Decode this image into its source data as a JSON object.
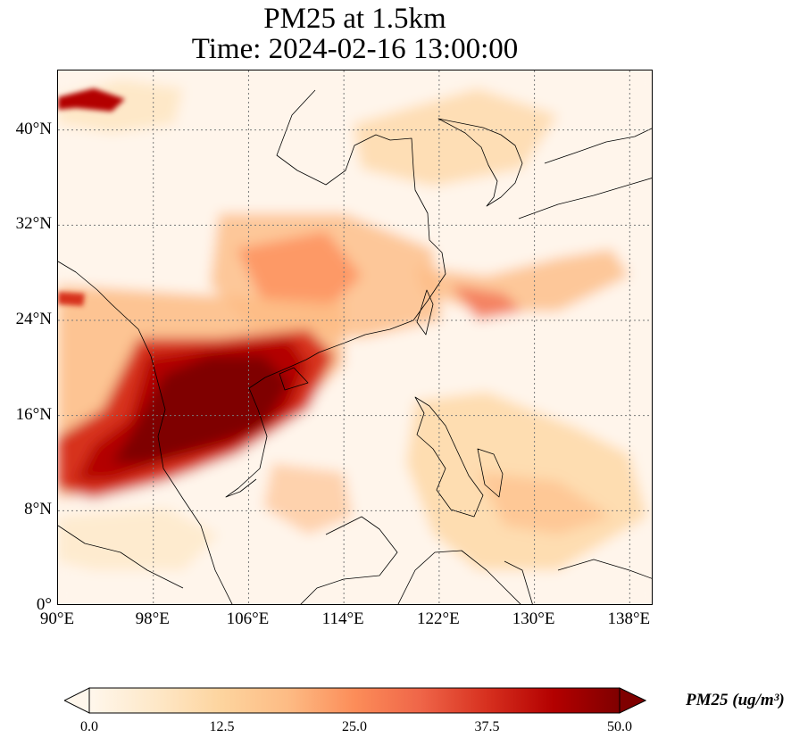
{
  "title_line1": "PM25 at 1.5km",
  "title_line2": "Time: 2024-02-16 13:00:00",
  "map": {
    "lon_range": [
      90,
      140
    ],
    "lat_range": [
      0,
      45
    ],
    "lat_ticks": [
      {
        "value": 40,
        "label": "40°N"
      },
      {
        "value": 32,
        "label": "32°N"
      },
      {
        "value": 24,
        "label": "24°N"
      },
      {
        "value": 16,
        "label": "16°N"
      },
      {
        "value": 8,
        "label": "8°N"
      },
      {
        "value": 0,
        "label": "0°"
      }
    ],
    "lon_ticks": [
      {
        "value": 90,
        "label": "90°E"
      },
      {
        "value": 98,
        "label": "98°E"
      },
      {
        "value": 106,
        "label": "106°E"
      },
      {
        "value": 114,
        "label": "114°E"
      },
      {
        "value": 122,
        "label": "122°E"
      },
      {
        "value": 130,
        "label": "130°E"
      },
      {
        "value": 138,
        "label": "138°E"
      }
    ],
    "gridlines": true,
    "colormap": "OrRd"
  },
  "colorbar": {
    "min": 0.0,
    "max": 50.0,
    "extend": "both",
    "ticks": [
      "0.0",
      "12.5",
      "25.0",
      "37.5",
      "50.0"
    ],
    "label": "PM25 (ug/m³)",
    "colors": [
      "#fff7ec",
      "#fee8c8",
      "#fdd49e",
      "#fdbb84",
      "#fc8d59",
      "#ef6548",
      "#d7301f",
      "#b30000",
      "#7f0000"
    ]
  }
}
